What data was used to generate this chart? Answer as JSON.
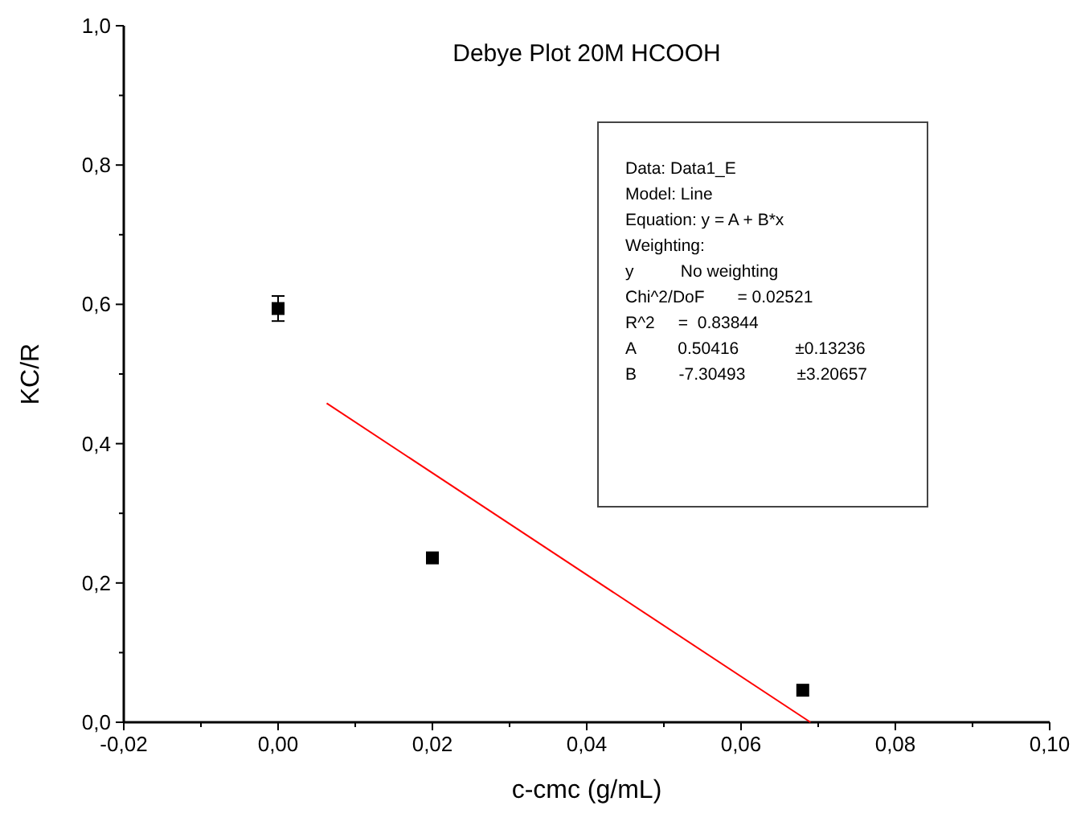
{
  "chart_data": {
    "type": "scatter",
    "title": "Debye Plot 20M HCOOH",
    "xlabel": "c-cmc (g/mL)",
    "ylabel": "KC/R",
    "xlim": [
      -0.02,
      0.1
    ],
    "ylim": [
      0,
      1
    ],
    "xticks": [
      {
        "value": -0.02,
        "label": "-0,02"
      },
      {
        "value": -0.01,
        "label": null
      },
      {
        "value": 0,
        "label": "0,00"
      },
      {
        "value": 0.01,
        "label": null
      },
      {
        "value": 0.02,
        "label": "0,02"
      },
      {
        "value": 0.03,
        "label": null
      },
      {
        "value": 0.04,
        "label": "0,04"
      },
      {
        "value": 0.05,
        "label": null
      },
      {
        "value": 0.06,
        "label": "0,06"
      },
      {
        "value": 0.07,
        "label": null
      },
      {
        "value": 0.08,
        "label": "0,08"
      },
      {
        "value": 0.09,
        "label": null
      },
      {
        "value": 0.1,
        "label": "0,10"
      }
    ],
    "yticks": [
      {
        "value": 0,
        "label": "0,0"
      },
      {
        "value": 0.1,
        "label": null
      },
      {
        "value": 0.2,
        "label": "0,2"
      },
      {
        "value": 0.3,
        "label": null
      },
      {
        "value": 0.4,
        "label": "0,4"
      },
      {
        "value": 0.5,
        "label": null
      },
      {
        "value": 0.6,
        "label": "0,6"
      },
      {
        "value": 0.7,
        "label": null
      },
      {
        "value": 0.8,
        "label": "0,8"
      },
      {
        "value": 0.9,
        "label": null
      },
      {
        "value": 1,
        "label": "1,0"
      }
    ],
    "grid": false,
    "series": [
      {
        "marker": "square",
        "color": "#000000",
        "x": [
          0,
          0.02,
          0.068
        ],
        "values": [
          0.594,
          0.236,
          0.046
        ],
        "errors": [
          0.018,
          null,
          null
        ]
      },
      {
        "type": "line",
        "color": "#ff0000",
        "x": [
          0.0063,
          0.069
        ],
        "values": [
          0.458,
          0.0
        ],
        "line_style": "solid"
      }
    ],
    "annotations": [
      "Data: Data1_E",
      "Model: Line",
      "Equation: y = A + B*x",
      "Weighting:",
      "y          No weighting",
      "Chi^2/DoF       = 0.02521",
      "R^2     =  0.83844",
      "A         0.50416            ±0.13236",
      "B         -7.30493           ±3.20657"
    ]
  }
}
